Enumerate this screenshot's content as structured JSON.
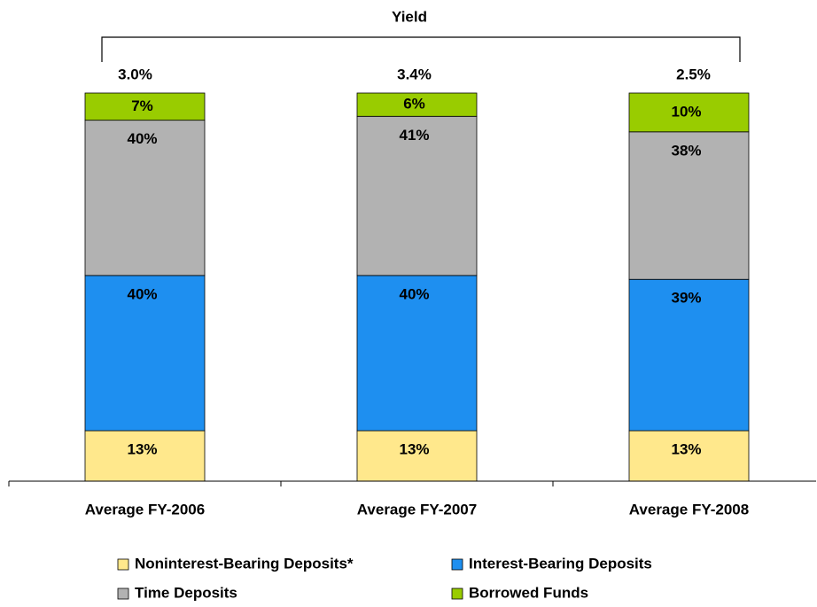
{
  "chart_data": {
    "type": "stacked_bar",
    "title": "Yield",
    "yield_labels": [
      "3.0%",
      "3.4%",
      "2.5%"
    ],
    "categories": [
      "Average FY-2006",
      "Average FY-2007",
      "Average FY-2008"
    ],
    "ylim": [
      0,
      100
    ],
    "series": [
      {
        "name": "Noninterest-Bearing Deposits*",
        "color": "#FFE88C",
        "values": [
          13,
          13,
          13
        ],
        "value_labels": [
          "13%",
          "13%",
          "13%"
        ]
      },
      {
        "name": "Interest-Bearing Deposits",
        "color": "#1E8FF0",
        "values": [
          40,
          40,
          39
        ],
        "value_labels": [
          "40%",
          "40%",
          "39%"
        ]
      },
      {
        "name": "Time Deposits",
        "color": "#B2B2B2",
        "values": [
          40,
          41,
          38
        ],
        "value_labels": [
          "40%",
          "41%",
          "38%"
        ]
      },
      {
        "name": "Borrowed Funds",
        "color": "#99CC00",
        "values": [
          7,
          6,
          10
        ],
        "value_labels": [
          "7%",
          "6%",
          "10%"
        ]
      }
    ]
  }
}
